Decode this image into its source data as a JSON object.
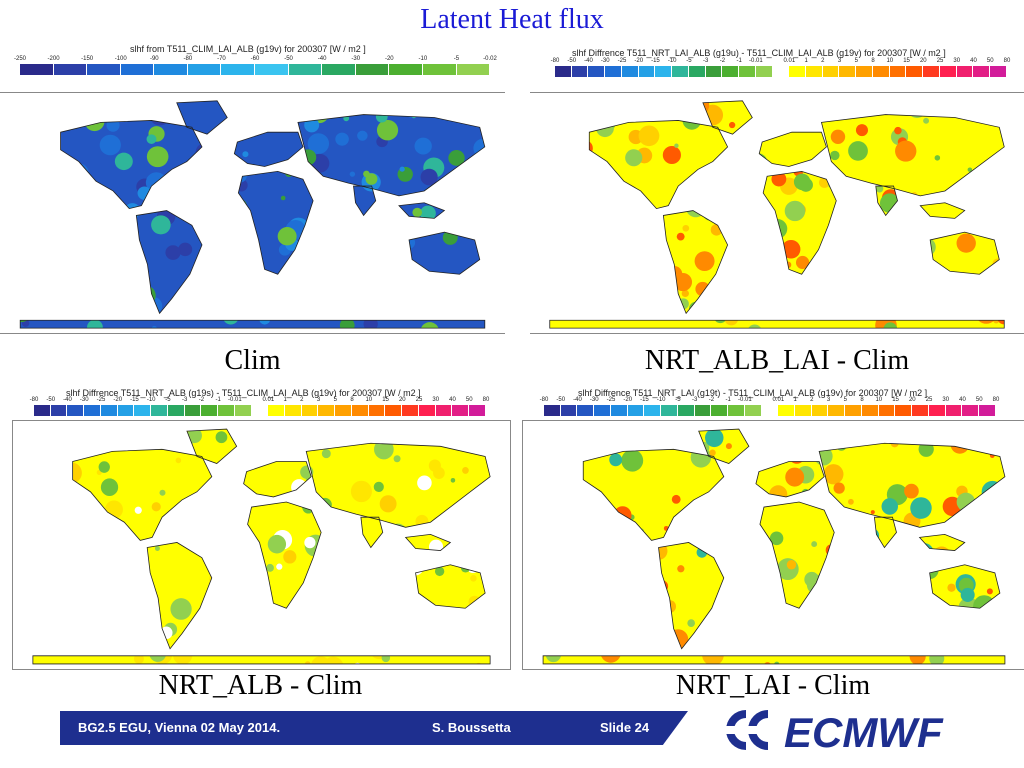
{
  "slide": {
    "title": "Latent Heat flux"
  },
  "colors": {
    "title": "#1b1bd6",
    "footer_band": "#1e2f8f",
    "logo": "#1e2f8f"
  },
  "panels": [
    {
      "caption": "Clim",
      "map_title": "slhf from T511_CLIM_LAI_ALB (g19v) for 200307 [W / m2 ]",
      "ticks": [
        "-250",
        "-200",
        "-150",
        "-100",
        "-90",
        "-80",
        "-70",
        "-60",
        "-50",
        "-40",
        "-30",
        "-20",
        "-10",
        "-5",
        "-0.02"
      ],
      "palette": [
        "#2a2a8a",
        "#2c3fa8",
        "#2456c2",
        "#1f6fd6",
        "#1f8ae0",
        "#24a0e6",
        "#2cb4ec",
        "#3ac4f0",
        "#2fb69a",
        "#2aa862",
        "#3a9e3a",
        "#4caf30",
        "#6fc23a",
        "#92d050"
      ],
      "scheme": "clim"
    },
    {
      "caption": "NRT_ALB_LAI - Clim",
      "map_title": "slhf Diffrence T511_NRT_LAI_ALB (g19u) - T511_CLIM_LAI_ALB (g19v) for 200307 [W / m2 ]",
      "ticks": [
        "-80",
        "-50",
        "-40",
        "-30",
        "-25",
        "-20",
        "-15",
        "-10",
        "-5",
        "-3",
        "-2",
        "-1",
        "-0.01",
        "",
        "0.01",
        "1",
        "2",
        "3",
        "5",
        "8",
        "10",
        "15",
        "20",
        "25",
        "30",
        "40",
        "50",
        "80"
      ],
      "palette": [
        "#2a2a8a",
        "#2c3fa8",
        "#2456c2",
        "#1f6fd6",
        "#1f8ae0",
        "#24a0e6",
        "#2cb4ec",
        "#2fb69a",
        "#2aa862",
        "#3a9e3a",
        "#4caf30",
        "#6fc23a",
        "#92d050",
        "#ffffff",
        "#ffff00",
        "#ffe600",
        "#ffd000",
        "#ffb800",
        "#ffa000",
        "#ff8a00",
        "#ff7000",
        "#ff5a00",
        "#ff3a20",
        "#ff2050",
        "#f0206e",
        "#e21e86",
        "#d21c9a"
      ],
      "scheme": "diff_strong"
    },
    {
      "caption": "NRT_ALB - Clim",
      "map_title": "slhf Diffrence T511_NRT_ALB (g19s) - T511_CLIM_LAI_ALB (g19v) for 200307 [W / m2 ]",
      "ticks": [
        "-80",
        "-50",
        "-40",
        "-30",
        "-25",
        "-20",
        "-15",
        "-10",
        "-5",
        "-3",
        "-2",
        "-1",
        "-0.01",
        "",
        "0.01",
        "1",
        "2",
        "3",
        "5",
        "8",
        "10",
        "15",
        "20",
        "25",
        "30",
        "40",
        "50",
        "80"
      ],
      "palette": [
        "#2a2a8a",
        "#2c3fa8",
        "#2456c2",
        "#1f6fd6",
        "#1f8ae0",
        "#24a0e6",
        "#2cb4ec",
        "#2fb69a",
        "#2aa862",
        "#3a9e3a",
        "#4caf30",
        "#6fc23a",
        "#92d050",
        "#ffffff",
        "#ffff00",
        "#ffe600",
        "#ffd000",
        "#ffb800",
        "#ffa000",
        "#ff8a00",
        "#ff7000",
        "#ff5a00",
        "#ff3a20",
        "#ff2050",
        "#f0206e",
        "#e21e86",
        "#d21c9a"
      ],
      "scheme": "diff_weak"
    },
    {
      "caption": "NRT_LAI - Clim",
      "map_title": "slhf Diffrence T511_NRT_LAI (g19t) - T511_CLIM_LAI_ALB (g19v) for 200307 [W / m2 ]",
      "ticks": [
        "-80",
        "-50",
        "-40",
        "-30",
        "-25",
        "-20",
        "-15",
        "-10",
        "-5",
        "-3",
        "-2",
        "-1",
        "-0.01",
        "",
        "0.01",
        "1",
        "2",
        "3",
        "5",
        "8",
        "10",
        "15",
        "20",
        "25",
        "30",
        "40",
        "50",
        "80"
      ],
      "palette": [
        "#2a2a8a",
        "#2c3fa8",
        "#2456c2",
        "#1f6fd6",
        "#1f8ae0",
        "#24a0e6",
        "#2cb4ec",
        "#2fb69a",
        "#2aa862",
        "#3a9e3a",
        "#4caf30",
        "#6fc23a",
        "#92d050",
        "#ffffff",
        "#ffff00",
        "#ffe600",
        "#ffd000",
        "#ffb800",
        "#ffa000",
        "#ff8a00",
        "#ff7000",
        "#ff5a00",
        "#ff3a20",
        "#ff2050",
        "#f0206e",
        "#e21e86",
        "#d21c9a"
      ],
      "scheme": "diff_mixed"
    }
  ],
  "footer": {
    "session": "BG2.5  EGU, Vienna 02 May 2014.",
    "author": "S. Boussetta",
    "slide_label": "Slide 24",
    "logo_text": "ECMWF"
  }
}
